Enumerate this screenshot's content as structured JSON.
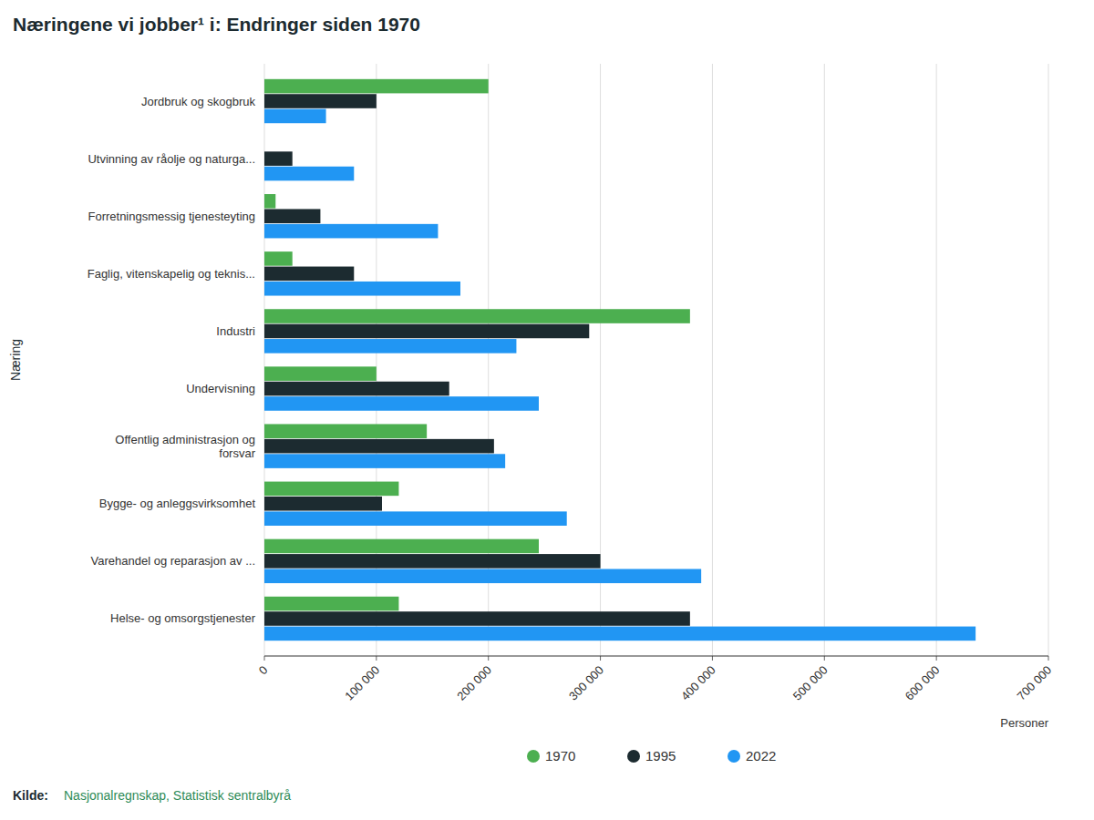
{
  "chart_data": {
    "type": "bar",
    "orientation": "horizontal",
    "title": "Næringene vi jobber¹ i: Endringer siden 1970",
    "x_label": "Personer",
    "y_label": "Næring",
    "categories": [
      "Helse- og omsorgstjenester",
      "Varehandel og reparasjon av ...",
      "Bygge- og anleggsvirksomhet",
      "Offentlig administrasjon og\nforsvar",
      "Undervisning",
      "Industri",
      "Faglig, vitenskapelig og teknis...",
      "Forretningsmessig tjenesteyting",
      "Utvinning av råolje og naturga...",
      "Jordbruk og skogbruk"
    ],
    "series": [
      {
        "name": "1970",
        "color": "#4caf50",
        "values": [
          120000,
          245000,
          120000,
          145000,
          100000,
          380000,
          25000,
          10000,
          0,
          200000
        ]
      },
      {
        "name": "1995",
        "color": "#1c2b30",
        "values": [
          380000,
          300000,
          105000,
          205000,
          165000,
          290000,
          80000,
          50000,
          25000,
          100000
        ]
      },
      {
        "name": "2022",
        "color": "#2196f3",
        "values": [
          635000,
          390000,
          270000,
          215000,
          245000,
          225000,
          175000,
          155000,
          80000,
          55000
        ]
      }
    ],
    "xlim": [
      0,
      700000
    ],
    "xticks": [
      0,
      {
        "value": 100000,
        "label": "100 000"
      },
      {
        "value": 200000,
        "label": "200 000"
      },
      {
        "value": 300000,
        "label": "300 000"
      },
      {
        "value": 400000,
        "label": "400 000"
      },
      {
        "value": 500000,
        "label": "500 000"
      },
      {
        "value": 600000,
        "label": "600 000"
      },
      {
        "value": 700000,
        "label": "700 000"
      }
    ],
    "grid": true,
    "legend": "bottom",
    "annotations": [
      {
        "text": "Kilde:"
      },
      {
        "text": "Nasjonalregnskap, Statistisk sentralbyrå"
      }
    ]
  }
}
